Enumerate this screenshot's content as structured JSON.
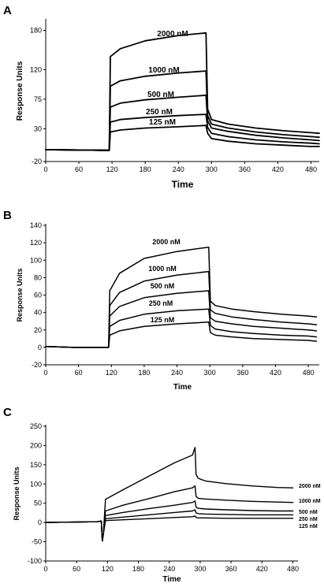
{
  "chart_data": [
    {
      "type": "line",
      "panel": "A",
      "xlabel": "Time",
      "ylabel": "Response Units",
      "xlim": [
        0,
        495
      ],
      "ylim": [
        -20,
        195
      ],
      "xticks": [
        "0",
        "60",
        "120",
        "180",
        "240",
        "300",
        "360",
        "420",
        "480"
      ],
      "yticks": [
        "-20",
        "30",
        "75",
        "120",
        "180"
      ],
      "ytick_values": [
        -20,
        30,
        75,
        120,
        180
      ],
      "series": [
        {
          "name": "2000 nM",
          "x": [
            0,
            115,
            117,
            135,
            180,
            240,
            290,
            293,
            300,
            330,
            380,
            430,
            480,
            495
          ],
          "y": [
            -2,
            -3,
            140,
            152,
            164,
            172,
            176,
            60,
            44,
            37,
            31,
            27,
            24,
            23
          ]
        },
        {
          "name": "1000 nM",
          "x": [
            0,
            115,
            117,
            135,
            180,
            240,
            290,
            293,
            300,
            330,
            380,
            430,
            480,
            495
          ],
          "y": [
            -2,
            -3,
            95,
            103,
            110,
            115,
            118,
            50,
            37,
            31,
            25,
            21,
            18,
            17
          ]
        },
        {
          "name": "500 nM",
          "x": [
            0,
            115,
            117,
            135,
            180,
            240,
            290,
            293,
            300,
            330,
            380,
            430,
            480,
            495
          ],
          "y": [
            -2,
            -3,
            63,
            69,
            74,
            78,
            81,
            42,
            31,
            26,
            20,
            16,
            13,
            12
          ]
        },
        {
          "name": "250 nM",
          "x": [
            0,
            115,
            117,
            135,
            180,
            240,
            290,
            293,
            300,
            330,
            380,
            430,
            480,
            495
          ],
          "y": [
            -2,
            -3,
            40,
            44,
            47,
            50,
            52,
            32,
            23,
            18,
            13,
            10,
            8,
            7
          ]
        },
        {
          "name": "125 nM",
          "x": [
            0,
            115,
            117,
            135,
            180,
            240,
            290,
            293,
            300,
            330,
            380,
            430,
            480,
            495
          ],
          "y": [
            -2,
            -3,
            25,
            28,
            31,
            33,
            35,
            23,
            15,
            11,
            7,
            5,
            3,
            3
          ]
        }
      ]
    },
    {
      "type": "line",
      "panel": "B",
      "xlabel": "Time",
      "ylabel": "Response Units",
      "xlim": [
        0,
        500
      ],
      "ylim": [
        -20,
        140
      ],
      "xticks": [
        "0",
        "60",
        "120",
        "180",
        "240",
        "300",
        "360",
        "420",
        "480"
      ],
      "yticks": [
        "-20",
        "0",
        "20",
        "40",
        "60",
        "80",
        "100",
        "120",
        "140"
      ],
      "ytick_values": [
        -20,
        0,
        20,
        40,
        60,
        80,
        100,
        120,
        140
      ],
      "series": [
        {
          "name": "2000 nM",
          "x": [
            0,
            50,
            115,
            117,
            135,
            180,
            240,
            298,
            301,
            310,
            340,
            380,
            430,
            480,
            495
          ],
          "y": [
            1,
            0,
            0,
            65,
            85,
            102,
            110,
            115,
            53,
            48,
            44,
            41,
            38,
            36,
            35
          ]
        },
        {
          "name": "1000 nM",
          "x": [
            0,
            50,
            115,
            117,
            135,
            180,
            240,
            298,
            301,
            310,
            340,
            380,
            430,
            480,
            495
          ],
          "y": [
            1,
            0,
            0,
            48,
            63,
            76,
            83,
            87,
            43,
            39,
            35,
            32,
            29,
            27,
            26
          ]
        },
        {
          "name": "500 nM",
          "x": [
            0,
            50,
            115,
            117,
            135,
            180,
            240,
            298,
            301,
            310,
            340,
            380,
            430,
            480,
            495
          ],
          "y": [
            1,
            0,
            0,
            36,
            47,
            57,
            62,
            65,
            34,
            30,
            27,
            24,
            22,
            20,
            19
          ]
        },
        {
          "name": "250 nM",
          "x": [
            0,
            50,
            115,
            117,
            135,
            180,
            240,
            298,
            301,
            310,
            340,
            380,
            430,
            480,
            495
          ],
          "y": [
            1,
            0,
            0,
            24,
            31,
            38,
            42,
            44,
            25,
            21,
            18,
            16,
            14,
            13,
            12
          ]
        },
        {
          "name": "125 nM",
          "x": [
            0,
            50,
            115,
            117,
            135,
            180,
            240,
            298,
            301,
            310,
            340,
            380,
            430,
            480,
            495
          ],
          "y": [
            1,
            0,
            0,
            14,
            19,
            24,
            27,
            29,
            17,
            14,
            12,
            10,
            9,
            8,
            7
          ]
        }
      ]
    },
    {
      "type": "line",
      "panel": "C",
      "xlabel": "Time",
      "ylabel": "Response Units",
      "xlim": [
        0,
        490
      ],
      "ylim": [
        -100,
        250
      ],
      "xticks": [
        "0",
        "60",
        "120",
        "180",
        "240",
        "300",
        "360",
        "420",
        "480"
      ],
      "yticks": [
        "-100",
        "-50",
        "0",
        "50",
        "100",
        "150",
        "200",
        "250"
      ],
      "ytick_values": [
        -100,
        -50,
        0,
        50,
        100,
        150,
        200,
        250
      ],
      "series": [
        {
          "name": "2000 nM",
          "x": [
            0,
            100,
            108,
            110,
            112,
            116,
            150,
            200,
            250,
            285,
            290,
            292,
            296,
            310,
            350,
            400,
            450,
            480
          ],
          "y": [
            0,
            2,
            4,
            -48,
            -30,
            60,
            85,
            120,
            155,
            175,
            195,
            125,
            115,
            108,
            101,
            95,
            91,
            90
          ]
        },
        {
          "name": "1000 nM",
          "x": [
            0,
            100,
            108,
            110,
            112,
            116,
            150,
            200,
            250,
            285,
            290,
            292,
            296,
            310,
            350,
            400,
            450,
            480
          ],
          "y": [
            0,
            2,
            4,
            -48,
            -30,
            30,
            45,
            62,
            80,
            90,
            95,
            68,
            63,
            61,
            58,
            55,
            53,
            52
          ]
        },
        {
          "name": "500 nM",
          "x": [
            0,
            100,
            108,
            110,
            112,
            116,
            150,
            200,
            250,
            285,
            290,
            292,
            296,
            310,
            350,
            400,
            450,
            480
          ],
          "y": [
            0,
            2,
            4,
            -48,
            -30,
            18,
            26,
            36,
            45,
            52,
            56,
            40,
            37,
            35,
            33,
            31,
            30,
            30
          ]
        },
        {
          "name": "250 nM",
          "x": [
            0,
            100,
            108,
            110,
            112,
            116,
            150,
            200,
            250,
            285,
            290,
            292,
            296,
            310,
            350,
            400,
            450,
            480
          ],
          "y": [
            0,
            2,
            4,
            -48,
            -30,
            10,
            14,
            20,
            26,
            30,
            33,
            25,
            23,
            22,
            21,
            20,
            20,
            20
          ]
        },
        {
          "name": "125 nM",
          "x": [
            0,
            100,
            108,
            110,
            112,
            116,
            150,
            200,
            250,
            285,
            290,
            292,
            296,
            310,
            350,
            400,
            450,
            480
          ],
          "y": [
            0,
            2,
            4,
            -48,
            -30,
            5,
            7,
            10,
            13,
            15,
            17,
            13,
            12,
            12,
            11,
            11,
            11,
            11
          ]
        }
      ]
    }
  ]
}
